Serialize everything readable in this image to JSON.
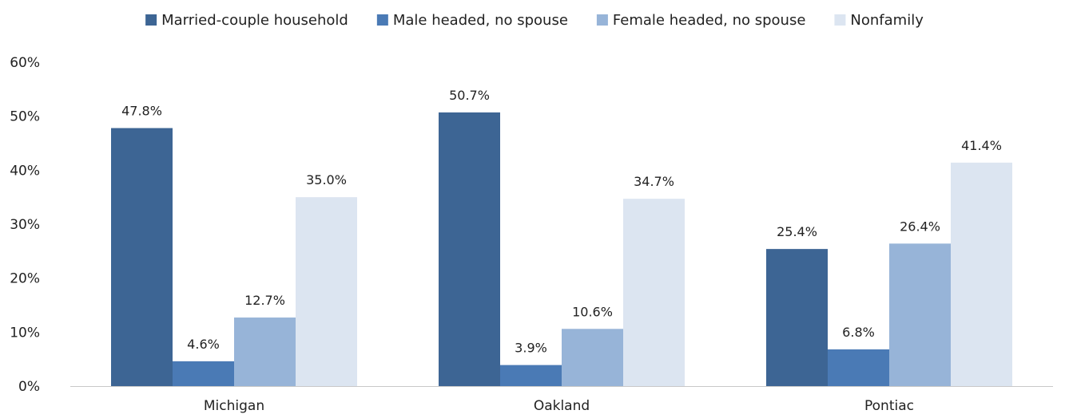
{
  "chart_data": {
    "type": "bar",
    "categories": [
      "Michigan",
      "Oakland",
      "Pontiac"
    ],
    "series": [
      {
        "name": "Married-couple household",
        "values": [
          47.8,
          50.7,
          25.4
        ],
        "labels": [
          "47.8%",
          "50.7%",
          "25.4%"
        ],
        "color": "#3d6594"
      },
      {
        "name": "Male headed, no spouse",
        "values": [
          4.6,
          3.9,
          6.8
        ],
        "labels": [
          "4.6%",
          "3.9%",
          "6.8%"
        ],
        "color": "#4a7ab5"
      },
      {
        "name": "Female headed, no spouse",
        "values": [
          12.7,
          10.6,
          26.4
        ],
        "labels": [
          "12.7%",
          "10.6%",
          "26.4%"
        ],
        "color": "#97b4d8"
      },
      {
        "name": "Nonfamily",
        "values": [
          35.0,
          34.7,
          41.4
        ],
        "labels": [
          "35.0%",
          "34.7%",
          "41.4%"
        ],
        "color": "#dce5f1"
      }
    ],
    "ylim": [
      0,
      60
    ],
    "yticks": [
      "0%",
      "10%",
      "20%",
      "30%",
      "40%",
      "50%",
      "60%"
    ],
    "grid": false,
    "legend": "top-center"
  }
}
